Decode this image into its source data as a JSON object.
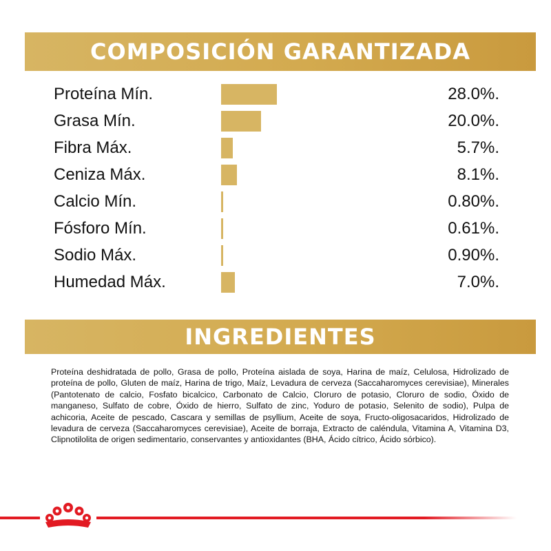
{
  "composition_title": "COMPOSICIÓN GARANTIZADA",
  "ingredients_title": "INGREDIENTES",
  "chart_data": {
    "type": "bar",
    "orientation": "horizontal",
    "title": "COMPOSICIÓN GARANTIZADA",
    "categories": [
      "Proteína Mín.",
      "Grasa Mín.",
      "Fibra Máx.",
      "Ceniza Máx.",
      "Calcio Mín.",
      "Fósforo Mín.",
      "Sodio Máx.",
      "Humedad Máx."
    ],
    "values": [
      28.0,
      20.0,
      5.7,
      8.1,
      0.8,
      0.61,
      0.9,
      7.0
    ],
    "value_labels": [
      "28.0%.",
      "20.0%.",
      "5.7%.",
      "8.1%.",
      "0.80%.",
      "0.61%.",
      "0.90%.",
      "7.0%."
    ],
    "unit": "%",
    "grid": false,
    "bar_color": "#d7b563"
  },
  "ingredients_text": "Proteína deshidratada de pollo, Grasa de pollo, Proteína aislada de soya, Harina de maíz, Celulosa, Hidrolizado de proteína de pollo, Gluten de maíz, Harina de trigo, Maíz, Levadura de cerveza (Saccaharomyces cerevisiae), Minerales (Pantotenato de calcio, Fosfato bicalcico, Carbonato de Calcio, Cloruro de potasio, Cloruro de sodio, Óxido de manganeso, Sulfato de cobre, Óxido de hierro, Sulfato de zinc, Yoduro de potasio, Selenito de sodio), Pulpa de achicoria, Aceite de pescado, Cascara y semillas de psyllium, Aceite de soya, Fructo-oligosacaridos, Hidrolizado de levadura de cerveza (Saccaharomyces cerevisiae), Aceite de borraja, Extracto de caléndula, Vitamina A, Vitamina D3, Clipnotilolita de origen sedimentario, conservantes y antioxidantes (BHA, Ácido cítrico, Ácido sórbico).",
  "colors": {
    "banner_gold": "#d3aa4f",
    "bar_gold": "#d7b563",
    "brand_red": "#e21a22"
  },
  "logo": {
    "icon": "crown-icon"
  }
}
